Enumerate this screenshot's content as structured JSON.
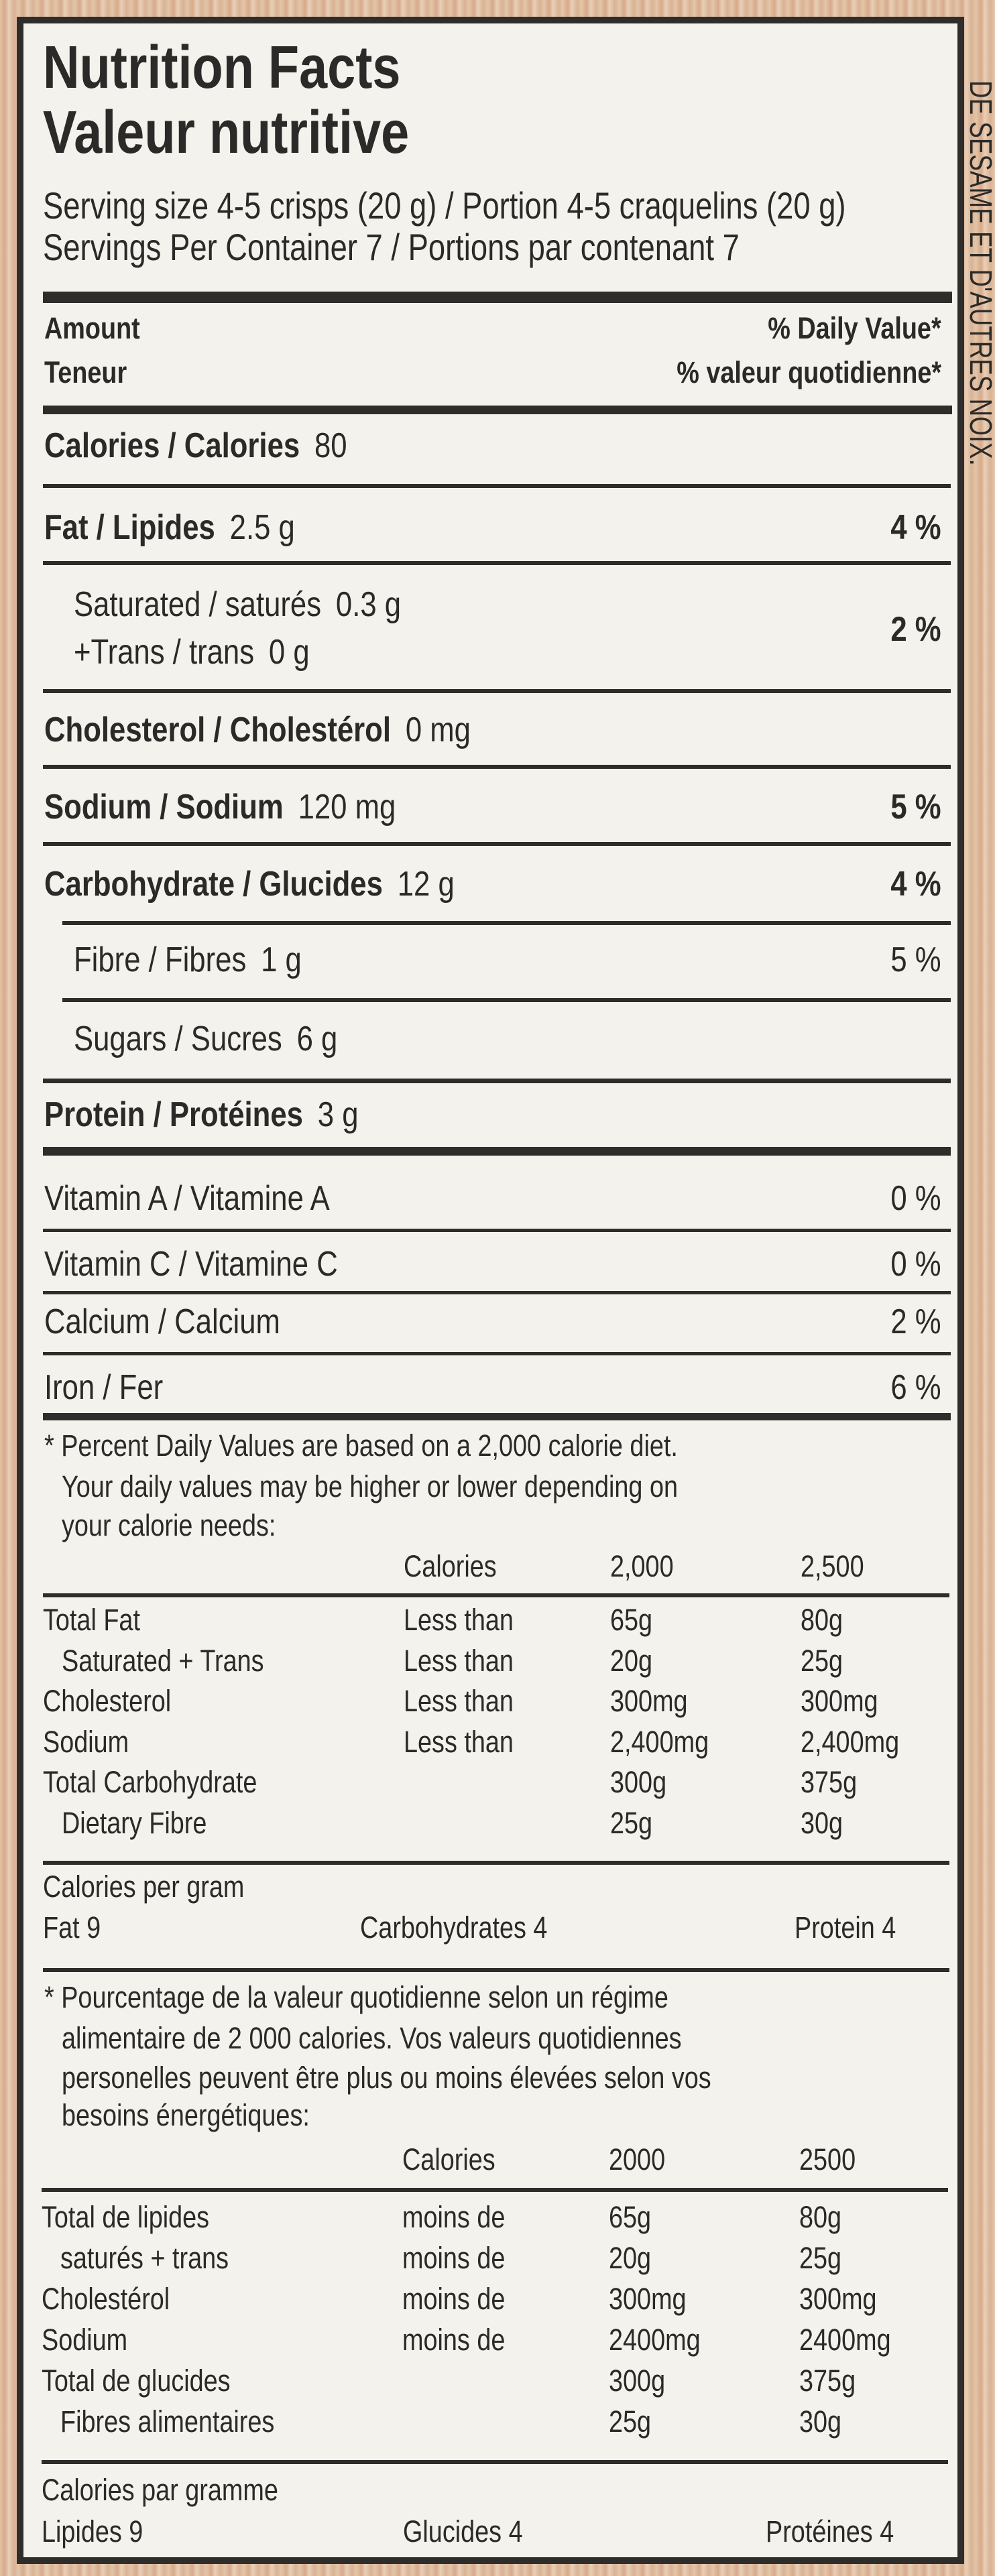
{
  "side_text": "DE SESAME ET D'AUTRES NOIX.",
  "header": {
    "title_en": "Nutrition Facts",
    "title_fr": "Valeur nutritive",
    "serving_size": "Serving size 4-5 crisps (20 g) / Portion 4-5 craquelins (20 g)",
    "servings_per_container": "Servings Per Container  7  /  Portions par contenant  7"
  },
  "columns": {
    "amount_en": "Amount",
    "amount_fr": "Teneur",
    "dv_en": "% Daily Value*",
    "dv_fr": "% valeur quotidienne*"
  },
  "calories": {
    "label": "Calories / Calories",
    "value": "80"
  },
  "nutrients": [
    {
      "label": "Fat / Lipides",
      "amount": "2.5 g",
      "dv": "4 %"
    },
    {
      "label": "Saturated / saturés",
      "amount": "0.3 g",
      "label2": "+Trans / trans",
      "amount2": "0 g",
      "dv": "2 %"
    },
    {
      "label": "Cholesterol / Cholestérol",
      "amount": "0 mg",
      "dv": ""
    },
    {
      "label": "Sodium / Sodium",
      "amount": "120 mg",
      "dv": "5 %"
    },
    {
      "label": "Carbohydrate /  Glucides",
      "amount": "12 g",
      "dv": "4 %"
    },
    {
      "label": "Fibre / Fibres",
      "amount": "1 g",
      "dv": "5 %"
    },
    {
      "label": "Sugars / Sucres",
      "amount": "6 g",
      "dv": ""
    },
    {
      "label": "Protein / Protéines",
      "amount": "3 g",
      "dv": ""
    }
  ],
  "vitamins": [
    {
      "label": "Vitamin A / Vitamine A",
      "dv": "0 %"
    },
    {
      "label": "Vitamin C / Vitamine C",
      "dv": "0 %"
    },
    {
      "label": "Calcium / Calcium",
      "dv": "2 %"
    },
    {
      "label": "Iron / Fer",
      "dv": "6 %"
    }
  ],
  "footnote_en": {
    "lines": [
      "* Percent Daily Values are based on a 2,000 calorie diet.",
      "Your daily values may be higher or lower depending on",
      "your calorie needs:"
    ],
    "header": [
      "Calories",
      "2,000",
      "2,500"
    ],
    "rows": [
      [
        "Total Fat",
        "Less than",
        "65g",
        "80g"
      ],
      [
        "Saturated + Trans",
        "Less than",
        "20g",
        "25g"
      ],
      [
        "Cholesterol",
        "Less than",
        "300mg",
        "300mg"
      ],
      [
        "Sodium",
        "Less than",
        "2,400mg",
        "2,400mg"
      ],
      [
        "Total Carbohydrate",
        "",
        "300g",
        "375g"
      ],
      [
        "Dietary Fibre",
        "",
        "25g",
        "30g"
      ]
    ],
    "per_gram_title": "Calories per gram",
    "per_gram": [
      "Fat  9",
      "Carbohydrates  4",
      "Protein  4"
    ]
  },
  "footnote_fr": {
    "lines": [
      "* Pourcentage de la valeur quotidienne selon un régime",
      "alimentaire de 2 000 calories. Vos valeurs quotidiennes",
      "personelles peuvent être plus ou moins élevées selon vos",
      "besoins énergétiques:"
    ],
    "header": [
      "Calories",
      "2000",
      "2500"
    ],
    "rows": [
      [
        "Total de lipides",
        "moins de",
        "65g",
        "80g"
      ],
      [
        "saturés + trans",
        "moins de",
        "20g",
        "25g"
      ],
      [
        "Cholestérol",
        "moins de",
        "300mg",
        "300mg"
      ],
      [
        "Sodium",
        "moins de",
        "2400mg",
        "2400mg"
      ],
      [
        "Total de glucides",
        "",
        "300g",
        "375g"
      ],
      [
        "Fibres alimentaires",
        "",
        "25g",
        "30g"
      ]
    ],
    "per_gram_title": "Calories par gramme",
    "per_gram": [
      "Lipides  9",
      "Glucides  4",
      "Protéines  4"
    ]
  }
}
